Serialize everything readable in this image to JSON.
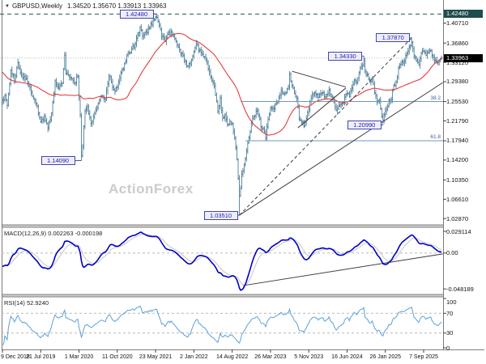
{
  "title": {
    "dropdown_icon": "▼",
    "symbol_timeframe": "GBPUSD,Weekly",
    "ohlc": "1.34520 1.35670 1.33913 1.33963"
  },
  "watermark": "ActionForex",
  "panels": {
    "macd": {
      "label": "MACD(12,26,9)",
      "values": "0.002263 -0.000198"
    },
    "rsi": {
      "label": "RSI(14)",
      "value": "52.9240"
    }
  },
  "y_axis": {
    "ticks": [
      {
        "text": "1.40710",
        "v": 1.4071
      },
      {
        "text": "1.36860",
        "v": 1.3686
      },
      {
        "text": "1.33120",
        "v": 1.3312
      },
      {
        "text": "1.29380",
        "v": 1.2938
      },
      {
        "text": "1.25530",
        "v": 1.2553
      },
      {
        "text": "1.21790",
        "v": 1.2179
      },
      {
        "text": "1.17940",
        "v": 1.1794
      },
      {
        "text": "1.14200",
        "v": 1.142
      },
      {
        "text": "1.10350",
        "v": 1.1035
      },
      {
        "text": "1.06610",
        "v": 1.0661
      },
      {
        "text": "1.02870",
        "v": 1.0287
      }
    ],
    "resistance": {
      "text": "1.42480",
      "v": 1.4248
    },
    "current": {
      "text": "1.33963",
      "v": 1.33963
    }
  },
  "macd_axis": [
    {
      "text": "0.029114",
      "v": 0.029114
    },
    {
      "text": "0.00",
      "v": 0
    },
    {
      "text": "-0.048189",
      "v": -0.048189
    }
  ],
  "rsi_axis": [
    {
      "text": "100",
      "v": 100
    },
    {
      "text": "70",
      "v": 70
    },
    {
      "text": "30",
      "v": 30
    },
    {
      "text": "0",
      "v": 0
    }
  ],
  "x_axis": {
    "tick_weeks": [
      0,
      32,
      64,
      96,
      128,
      160,
      192,
      224,
      256,
      288,
      320,
      352
    ],
    "labels": [
      "9 Dec 2018",
      "21 Jul 2019",
      "1 Mar 2020",
      "11 Oct 2020",
      "23 May 2021",
      "2 Jan 2022",
      "14 Aug 2022",
      "26 Mar 2023",
      "5 Nov 2023",
      "16 Jun 2024",
      "26 Jan 2025",
      "7 Sep 2025"
    ]
  },
  "annotations": [
    {
      "text": "1.42480",
      "price": 1.4248,
      "week": 129,
      "gap": 4
    },
    {
      "text": "1.37870",
      "price": 1.3787,
      "week": 342,
      "gap": 2
    },
    {
      "text": "1.34330",
      "price": 1.3433,
      "week": 302,
      "gap": 2
    },
    {
      "text": "1.20990",
      "price": 1.2099,
      "week": 318,
      "gap": 2
    },
    {
      "text": "1.14090",
      "price": 1.1409,
      "week": 66,
      "gap": 8
    },
    {
      "text": "1.03510",
      "price": 1.0351,
      "week": 198,
      "gap": 2
    }
  ],
  "fib_levels": [
    {
      "text": "38.2",
      "price": 1.2553,
      "start_week": 199
    },
    {
      "text": "61.8",
      "price": 1.1794,
      "start_week": 203
    }
  ],
  "lines": {
    "resistance_dashed": {
      "price": 1.4248
    },
    "rising_dashed": {
      "from": {
        "week": 198,
        "price": 1.0351
      },
      "to": {
        "week": 342,
        "price": 1.3787
      }
    },
    "rising_solid": {
      "from": {
        "week": 198,
        "price": 1.0351
      },
      "to": {
        "week": 368,
        "price": 1.292
      }
    },
    "triangle_upper": {
      "from": {
        "week": 242,
        "price": 1.314
      },
      "to": {
        "week": 287,
        "price": 1.2835
      }
    },
    "triangle_lower": {
      "from": {
        "week": 247,
        "price": 1.2045
      },
      "to": {
        "week": 287,
        "price": 1.2815
      }
    },
    "macd_trendline": {
      "from": {
        "week": 201,
        "v": -0.0437
      },
      "to": {
        "week": 368,
        "v": -0.0011
      }
    }
  },
  "colors": {
    "bar": "#4e7f9a",
    "ma": "#e43c3c",
    "macd": "#0000c8",
    "signal": "#c6c6c6",
    "rsi": "#5ba0d9",
    "resistance": "#1e5c5c",
    "fib": "#6f9bb3",
    "trend": "#3a3a3a",
    "grid": "#b8b8b8",
    "callout_border": "#4343b4",
    "border": "#7a7a7a"
  },
  "chart_data": [
    {
      "type": "ohlc-bar",
      "title": "GBPUSD Weekly",
      "x_unit": "week",
      "start_date": "9 Dec 2018",
      "weeks": 368,
      "ylim": [
        1.018,
        1.452
      ],
      "ma": {
        "kind": "sma",
        "period": 40
      },
      "close_keypoints": [
        [
          0,
          1.258
        ],
        [
          2,
          1.267
        ],
        [
          4,
          1.248
        ],
        [
          7,
          1.316
        ],
        [
          10,
          1.295
        ],
        [
          13,
          1.331
        ],
        [
          16,
          1.306
        ],
        [
          20,
          1.3
        ],
        [
          24,
          1.273
        ],
        [
          28,
          1.252
        ],
        [
          32,
          1.216
        ],
        [
          35,
          1.226
        ],
        [
          38,
          1.204
        ],
        [
          41,
          1.233
        ],
        [
          44,
          1.295
        ],
        [
          47,
          1.282
        ],
        [
          50,
          1.291
        ],
        [
          52,
          1.345
        ],
        [
          53,
          1.309
        ],
        [
          56,
          1.303
        ],
        [
          60,
          1.291
        ],
        [
          63,
          1.305
        ],
        [
          65,
          1.229
        ],
        [
          66,
          1.15
        ],
        [
          67,
          1.169
        ],
        [
          69,
          1.237
        ],
        [
          71,
          1.245
        ],
        [
          74,
          1.213
        ],
        [
          77,
          1.233
        ],
        [
          80,
          1.251
        ],
        [
          83,
          1.266
        ],
        [
          86,
          1.259
        ],
        [
          89,
          1.305
        ],
        [
          91,
          1.293
        ],
        [
          94,
          1.275
        ],
        [
          97,
          1.293
        ],
        [
          100,
          1.317
        ],
        [
          103,
          1.333
        ],
        [
          105,
          1.35
        ],
        [
          108,
          1.357
        ],
        [
          111,
          1.367
        ],
        [
          113,
          1.384
        ],
        [
          115,
          1.399
        ],
        [
          117,
          1.382
        ],
        [
          120,
          1.39
        ],
        [
          123,
          1.397
        ],
        [
          126,
          1.413
        ],
        [
          129,
          1.418
        ],
        [
          130,
          1.41
        ],
        [
          133,
          1.381
        ],
        [
          136,
          1.372
        ],
        [
          139,
          1.389
        ],
        [
          142,
          1.385
        ],
        [
          145,
          1.372
        ],
        [
          148,
          1.356
        ],
        [
          151,
          1.344
        ],
        [
          154,
          1.325
        ],
        [
          157,
          1.328
        ],
        [
          160,
          1.352
        ],
        [
          162,
          1.366
        ],
        [
          165,
          1.355
        ],
        [
          168,
          1.342
        ],
        [
          171,
          1.331
        ],
        [
          174,
          1.304
        ],
        [
          177,
          1.285
        ],
        [
          180,
          1.236
        ],
        [
          182,
          1.262
        ],
        [
          184,
          1.223
        ],
        [
          186,
          1.23
        ],
        [
          188,
          1.211
        ],
        [
          190,
          1.217
        ],
        [
          192,
          1.213
        ],
        [
          194,
          1.184
        ],
        [
          196,
          1.143
        ],
        [
          198,
          1.073
        ],
        [
          199,
          1.087
        ],
        [
          200,
          1.115
        ],
        [
          202,
          1.134
        ],
        [
          204,
          1.16
        ],
        [
          206,
          1.185
        ],
        [
          208,
          1.213
        ],
        [
          210,
          1.226
        ],
        [
          212,
          1.237
        ],
        [
          214,
          1.229
        ],
        [
          216,
          1.206
        ],
        [
          218,
          1.203
        ],
        [
          220,
          1.184
        ],
        [
          222,
          1.221
        ],
        [
          224,
          1.243
        ],
        [
          227,
          1.242
        ],
        [
          230,
          1.255
        ],
        [
          233,
          1.277
        ],
        [
          236,
          1.271
        ],
        [
          239,
          1.284
        ],
        [
          240,
          1.308
        ],
        [
          242,
          1.286
        ],
        [
          244,
          1.271
        ],
        [
          246,
          1.261
        ],
        [
          248,
          1.221
        ],
        [
          250,
          1.215
        ],
        [
          252,
          1.208
        ],
        [
          254,
          1.222
        ],
        [
          256,
          1.241
        ],
        [
          258,
          1.262
        ],
        [
          261,
          1.272
        ],
        [
          264,
          1.263
        ],
        [
          267,
          1.272
        ],
        [
          270,
          1.264
        ],
        [
          273,
          1.278
        ],
        [
          276,
          1.263
        ],
        [
          279,
          1.238
        ],
        [
          281,
          1.246
        ],
        [
          284,
          1.253
        ],
        [
          287,
          1.269
        ],
        [
          290,
          1.265
        ],
        [
          292,
          1.281
        ],
        [
          294,
          1.297
        ],
        [
          296,
          1.292
        ],
        [
          298,
          1.312
        ],
        [
          300,
          1.323
        ],
        [
          302,
          1.336
        ],
        [
          303,
          1.313
        ],
        [
          305,
          1.307
        ],
        [
          307,
          1.293
        ],
        [
          309,
          1.301
        ],
        [
          311,
          1.271
        ],
        [
          313,
          1.255
        ],
        [
          315,
          1.258
        ],
        [
          317,
          1.226
        ],
        [
          318,
          1.219
        ],
        [
          319,
          1.23
        ],
        [
          321,
          1.241
        ],
        [
          323,
          1.258
        ],
        [
          325,
          1.259
        ],
        [
          327,
          1.287
        ],
        [
          329,
          1.293
        ],
        [
          331,
          1.321
        ],
        [
          333,
          1.328
        ],
        [
          335,
          1.331
        ],
        [
          337,
          1.344
        ],
        [
          339,
          1.353
        ],
        [
          341,
          1.364
        ],
        [
          342,
          1.37
        ],
        [
          344,
          1.343
        ],
        [
          346,
          1.335
        ],
        [
          348,
          1.326
        ],
        [
          350,
          1.349
        ],
        [
          352,
          1.353
        ],
        [
          354,
          1.345
        ],
        [
          356,
          1.35
        ],
        [
          358,
          1.354
        ],
        [
          360,
          1.341
        ],
        [
          362,
          1.335
        ],
        [
          364,
          1.331
        ],
        [
          366,
          1.337
        ],
        [
          367,
          1.3396
        ]
      ],
      "key_highs": [
        [
          13,
          1.3381
        ],
        [
          52,
          1.3514
        ],
        [
          115,
          1.4018
        ],
        [
          129,
          1.4248
        ],
        [
          162,
          1.3749
        ],
        [
          240,
          1.3142
        ],
        [
          302,
          1.3433
        ],
        [
          342,
          1.3787
        ]
      ],
      "key_lows": [
        [
          4,
          1.2409
        ],
        [
          38,
          1.1959
        ],
        [
          66,
          1.1409
        ],
        [
          198,
          1.0351
        ],
        [
          220,
          1.1802
        ],
        [
          252,
          1.2037
        ],
        [
          280,
          1.2299
        ],
        [
          318,
          1.2099
        ]
      ]
    },
    {
      "type": "line",
      "name": "MACD(12,26,9)",
      "derived_from": "close",
      "params": {
        "fast": 12,
        "slow": 26,
        "signal": 9
      },
      "current_values": "0.002263 -0.000198",
      "ylim": [
        -0.0545,
        0.0335
      ],
      "axis_labels": [
        0.029114,
        0,
        -0.048189
      ]
    },
    {
      "type": "line",
      "name": "RSI(14)",
      "derived_from": "close",
      "period": 14,
      "current_value": 52.924,
      "ylim": [
        0,
        100
      ],
      "levels": [
        70,
        30
      ]
    }
  ]
}
